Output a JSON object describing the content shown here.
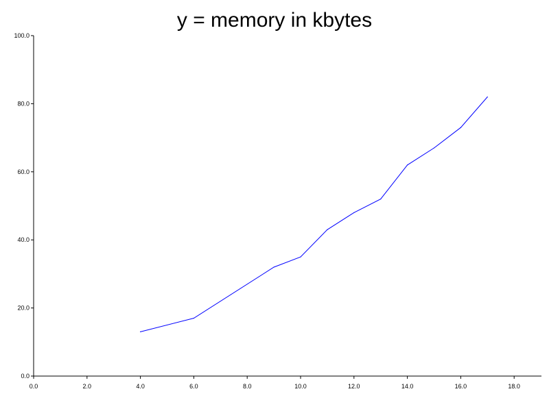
{
  "chart_data": {
    "type": "line",
    "title": "y = memory in kbytes",
    "xlabel": "",
    "ylabel": "",
    "xlim": [
      0,
      19
    ],
    "ylim": [
      0,
      100
    ],
    "x_ticks": [
      0,
      2,
      4,
      6,
      8,
      10,
      12,
      14,
      16,
      18
    ],
    "x_tick_labels": [
      "0.0",
      "2.0",
      "4.0",
      "6.0",
      "8.0",
      "10.0",
      "12.0",
      "14.0",
      "16.0",
      "18.0"
    ],
    "y_ticks": [
      0,
      20,
      40,
      60,
      80,
      100
    ],
    "y_tick_labels": [
      "0.0",
      "20.0",
      "40.0",
      "60.0",
      "80.0",
      "100.0"
    ],
    "grid": false,
    "series": [
      {
        "color": "#0000ff",
        "x": [
          4,
          6,
          9,
          10,
          11,
          12,
          13,
          14,
          15,
          16,
          17
        ],
        "y": [
          13,
          17,
          32,
          35,
          43,
          48,
          52,
          62,
          67,
          73,
          82
        ]
      }
    ]
  }
}
